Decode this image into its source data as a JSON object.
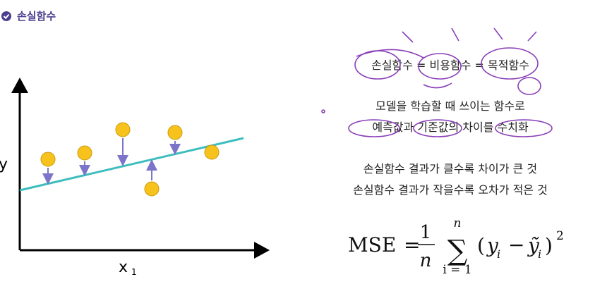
{
  "header": {
    "title": "손실함수"
  },
  "diagram": {
    "y_label": "y",
    "x_label": "x",
    "x_subscript": "1"
  },
  "notes": {
    "definition": "손실함수 = 비용함수 = 목적함수",
    "lines": [
      "모델을 학습할 때 쓰이는 함수로",
      "예측값과 기준값의 차이를 수치화"
    ],
    "results": [
      "손실함수 결과가 클수록 차이가 큰 것",
      "손실함수 결과가 작을수록 오차가 적은 것"
    ]
  },
  "formula": {
    "lhs": "MSE",
    "equals": "=",
    "numerator": "1",
    "denominator": "n",
    "sum": "∑",
    "upper": "n",
    "lower": "i = 1",
    "open": "(",
    "y": "y",
    "y_index": "i",
    "minus": "−",
    "y_hat": "ỹ",
    "y_hat_index": "i",
    "close": ")",
    "power": "2"
  }
}
